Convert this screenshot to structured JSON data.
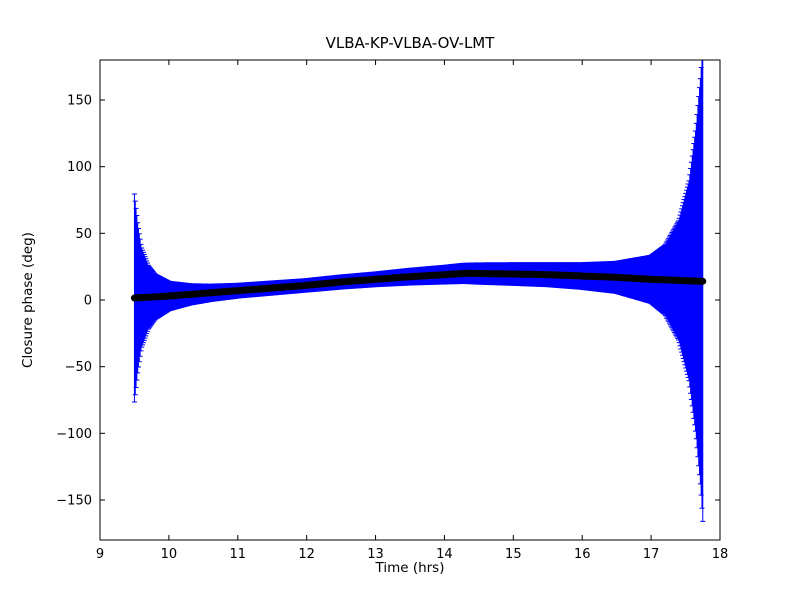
{
  "chart_data": {
    "type": "scatter",
    "subtype": "errorbar",
    "title": "VLBA-KP-VLBA-OV-LMT",
    "xlabel": "Time (hrs)",
    "ylabel": "Closure phase (deg)",
    "xlim": [
      9,
      18
    ],
    "ylim": [
      -180,
      180
    ],
    "xticks": [
      9,
      10,
      11,
      12,
      13,
      14,
      15,
      16,
      17,
      18
    ],
    "yticks": [
      -150,
      -100,
      -50,
      0,
      50,
      100,
      150
    ],
    "grid": false,
    "legend": null,
    "colors": {
      "errorbar": "#0000ff",
      "marker": "#000000",
      "frame": "#000000",
      "background": "#ffffff"
    },
    "series": [
      {
        "name": "closure-phase",
        "marker": "o",
        "time_range_hrs": [
          9.5,
          17.75
        ],
        "phase_deg_anchors": [
          [
            9.5,
            1.5
          ],
          [
            10,
            3
          ],
          [
            10.5,
            5
          ],
          [
            11,
            7
          ],
          [
            11.5,
            9
          ],
          [
            12,
            11
          ],
          [
            12.5,
            13.5
          ],
          [
            13,
            15.5
          ],
          [
            13.5,
            17.5
          ],
          [
            14,
            19
          ],
          [
            14.3,
            20
          ],
          [
            15,
            19.5
          ],
          [
            15.5,
            19
          ],
          [
            16,
            18
          ],
          [
            16.5,
            17
          ],
          [
            17,
            15.5
          ],
          [
            17.5,
            14.5
          ],
          [
            17.75,
            14
          ]
        ],
        "error_deg_anchors": [
          [
            9.5,
            78
          ],
          [
            9.55,
            55
          ],
          [
            9.6,
            38
          ],
          [
            9.7,
            24
          ],
          [
            9.8,
            17
          ],
          [
            10,
            11
          ],
          [
            10.3,
            8
          ],
          [
            10.6,
            6.5
          ],
          [
            11,
            5.5
          ],
          [
            12,
            5
          ],
          [
            13,
            5.5
          ],
          [
            14,
            7
          ],
          [
            14.5,
            8
          ],
          [
            15,
            8.5
          ],
          [
            15.5,
            9
          ],
          [
            16,
            10
          ],
          [
            16.5,
            12
          ],
          [
            17,
            18
          ],
          [
            17.2,
            26
          ],
          [
            17.4,
            45
          ],
          [
            17.55,
            75
          ],
          [
            17.65,
            115
          ],
          [
            17.72,
            155
          ],
          [
            17.75,
            180
          ]
        ]
      }
    ]
  }
}
